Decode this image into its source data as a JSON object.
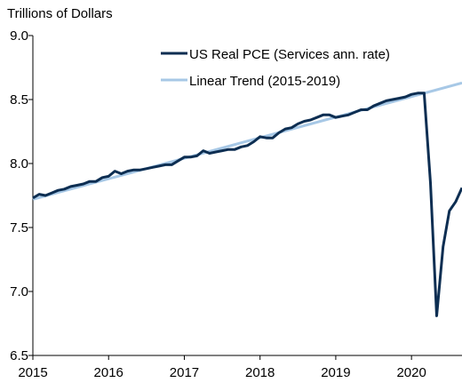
{
  "chart_data": {
    "type": "line",
    "unit_label": "Trillions  of Dollars",
    "xlim": [
      2015.0,
      2020.667
    ],
    "ylim": [
      6.5,
      9.0
    ],
    "x_ticks": [
      {
        "value": 2015,
        "label": "2015"
      },
      {
        "value": 2016,
        "label": "2016"
      },
      {
        "value": 2017,
        "label": "2017"
      },
      {
        "value": 2018,
        "label": "2018"
      },
      {
        "value": 2019,
        "label": "2019"
      },
      {
        "value": 2020,
        "label": "2020"
      }
    ],
    "y_ticks": [
      {
        "value": 6.5,
        "label": "6.5"
      },
      {
        "value": 7.0,
        "label": "7.0"
      },
      {
        "value": 7.5,
        "label": "7.5"
      },
      {
        "value": 8.0,
        "label": "8.0"
      },
      {
        "value": 8.5,
        "label": "8.5"
      },
      {
        "value": 9.0,
        "label": "9.0"
      }
    ],
    "grid": false,
    "legend_position": "top-center",
    "series": [
      {
        "name": "US Real PCE (Services ann. rate)",
        "color": "#0d2e52",
        "x": [
          2015.0,
          2015.083,
          2015.167,
          2015.25,
          2015.333,
          2015.417,
          2015.5,
          2015.583,
          2015.667,
          2015.75,
          2015.833,
          2015.917,
          2016.0,
          2016.083,
          2016.167,
          2016.25,
          2016.333,
          2016.417,
          2016.5,
          2016.583,
          2016.667,
          2016.75,
          2016.833,
          2016.917,
          2017.0,
          2017.083,
          2017.167,
          2017.25,
          2017.333,
          2017.417,
          2017.5,
          2017.583,
          2017.667,
          2017.75,
          2017.833,
          2017.917,
          2018.0,
          2018.083,
          2018.167,
          2018.25,
          2018.333,
          2018.417,
          2018.5,
          2018.583,
          2018.667,
          2018.75,
          2018.833,
          2018.917,
          2019.0,
          2019.083,
          2019.167,
          2019.25,
          2019.333,
          2019.417,
          2019.5,
          2019.583,
          2019.667,
          2019.75,
          2019.833,
          2019.917,
          2020.0,
          2020.083,
          2020.167,
          2020.25,
          2020.333,
          2020.417,
          2020.5,
          2020.583,
          2020.667
        ],
        "y": [
          7.73,
          7.76,
          7.75,
          7.77,
          7.79,
          7.8,
          7.82,
          7.83,
          7.84,
          7.86,
          7.86,
          7.89,
          7.9,
          7.94,
          7.92,
          7.94,
          7.95,
          7.95,
          7.96,
          7.97,
          7.98,
          7.99,
          7.99,
          8.02,
          8.05,
          8.05,
          8.06,
          8.1,
          8.08,
          8.09,
          8.1,
          8.11,
          8.11,
          8.13,
          8.14,
          8.17,
          8.21,
          8.2,
          8.2,
          8.24,
          8.27,
          8.28,
          8.31,
          8.33,
          8.34,
          8.36,
          8.38,
          8.38,
          8.36,
          8.37,
          8.38,
          8.4,
          8.42,
          8.42,
          8.45,
          8.47,
          8.49,
          8.5,
          8.51,
          8.52,
          8.54,
          8.55,
          8.55,
          7.85,
          6.81,
          7.35,
          7.63,
          7.7,
          7.81
        ]
      },
      {
        "name": "Linear Trend (2015-2019)",
        "color": "#a7c8e6",
        "x": [
          2015.0,
          2020.667
        ],
        "y": [
          7.72,
          8.63
        ]
      }
    ]
  }
}
